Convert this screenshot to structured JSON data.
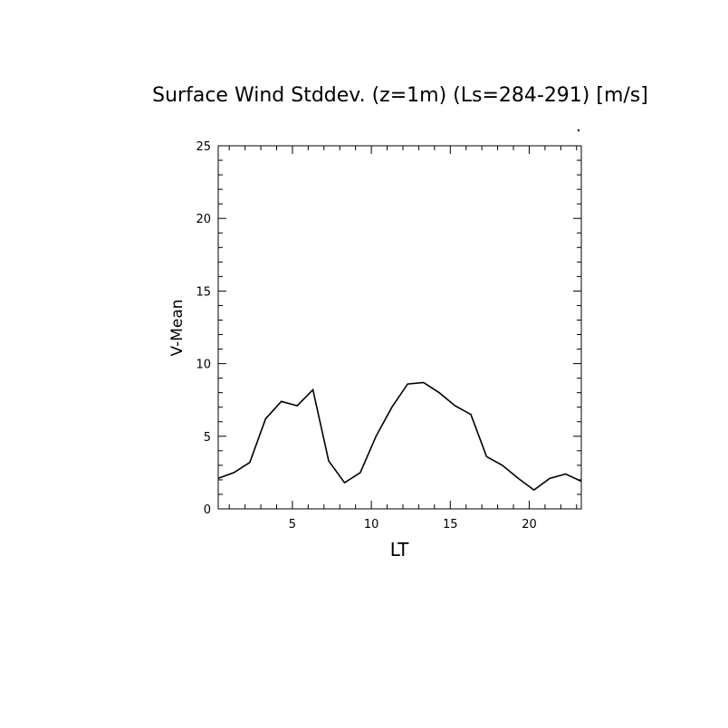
{
  "chart_data": {
    "type": "line",
    "title": "Surface Wind Stddev. (z=1m) (Ls=284-291) [m/s]",
    "xlabel": "LT",
    "ylabel": "V-Mean",
    "xlim": [
      0.3,
      23.3
    ],
    "ylim": [
      0,
      25
    ],
    "x_ticks": [
      5,
      10,
      15,
      20
    ],
    "y_ticks": [
      0,
      5,
      10,
      15,
      20,
      25
    ],
    "x_tick_labels": [
      "5",
      "10",
      "15",
      "20"
    ],
    "y_tick_labels": [
      "0",
      "5",
      "10",
      "15",
      "20",
      "25"
    ],
    "grid": false,
    "series": [
      {
        "x": [
          0.3,
          1.3,
          2.3,
          3.3,
          4.3,
          5.3,
          6.3,
          7.3,
          8.3,
          9.3,
          10.3,
          11.3,
          12.3,
          13.3,
          14.3,
          15.3,
          16.3,
          17.3,
          18.3,
          19.3,
          20.3,
          21.3,
          22.3,
          23.3
        ],
        "values": [
          2.1,
          2.5,
          3.2,
          6.2,
          7.4,
          7.1,
          8.2,
          3.3,
          1.8,
          2.5,
          5.0,
          7.0,
          8.6,
          8.7,
          8.0,
          7.1,
          6.5,
          3.6,
          3.0,
          2.1,
          1.3,
          2.1,
          2.4,
          1.9
        ]
      }
    ]
  }
}
